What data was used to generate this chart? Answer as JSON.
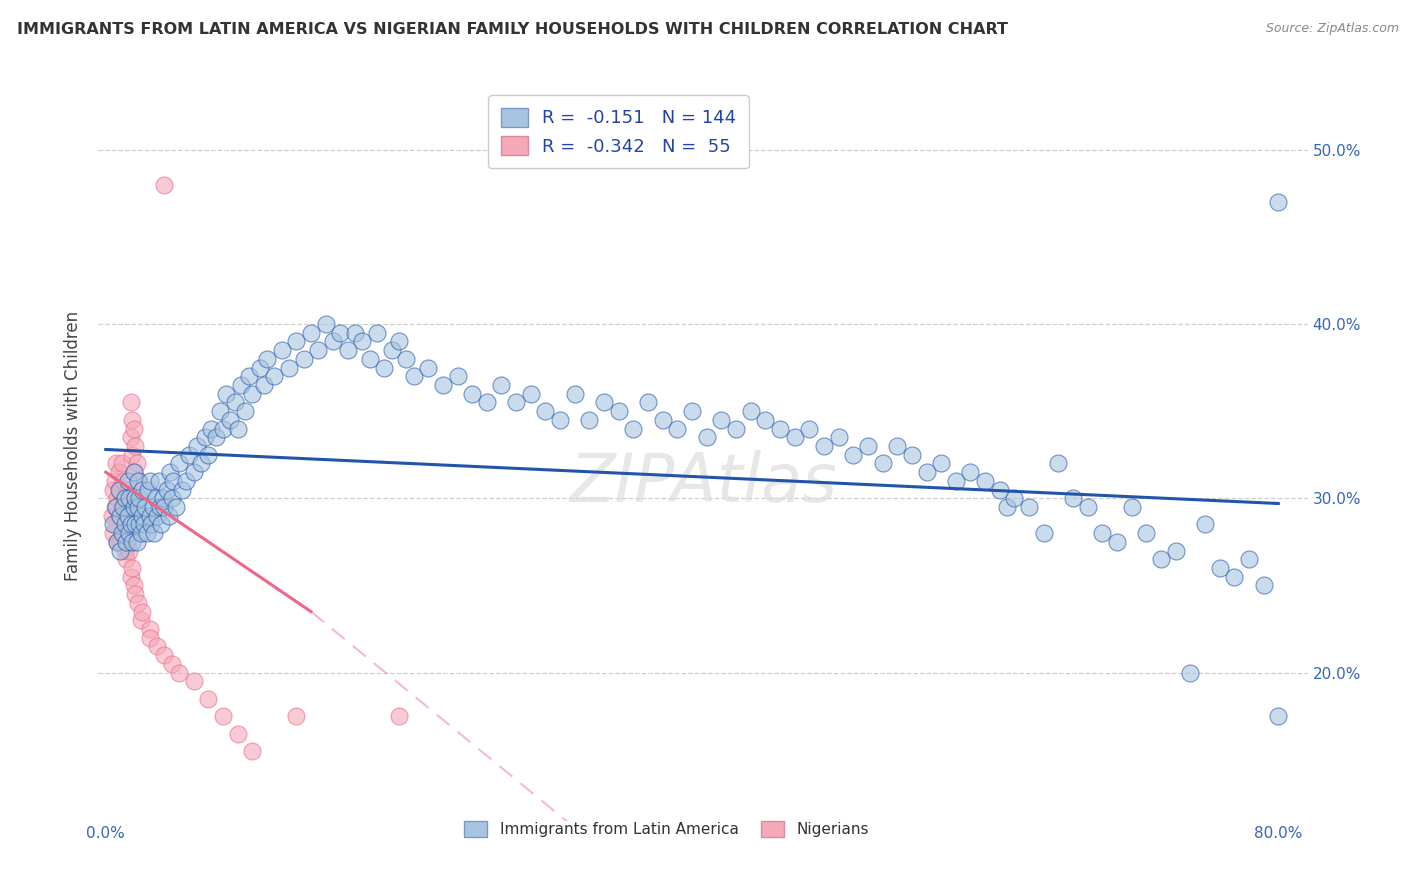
{
  "title": "IMMIGRANTS FROM LATIN AMERICA VS NIGERIAN FAMILY HOUSEHOLDS WITH CHILDREN CORRELATION CHART",
  "source": "Source: ZipAtlas.com",
  "ylabel": "Family Households with Children",
  "xlim": [
    -0.005,
    0.82
  ],
  "ylim": [
    0.115,
    0.545
  ],
  "blue_R": -0.151,
  "blue_N": 144,
  "pink_R": -0.342,
  "pink_N": 55,
  "blue_color": "#A8C4E0",
  "pink_color": "#F4A8B8",
  "blue_line_color": "#2255AA",
  "pink_line_color": "#EE6688",
  "background_color": "#ffffff",
  "grid_color": "#bbbbbb",
  "watermark": "ZIPAtlas",
  "ytick_positions": [
    0.2,
    0.3,
    0.4,
    0.5
  ],
  "ytick_labels": [
    "20.0%",
    "30.0%",
    "40.0%",
    "50.0%"
  ],
  "xtick_positions": [
    0.0,
    0.1,
    0.2,
    0.3,
    0.4,
    0.5,
    0.6,
    0.7,
    0.8
  ],
  "xtick_labels": [
    "0.0%",
    "",
    "",
    "",
    "",
    "",
    "",
    "",
    "80.0%"
  ],
  "blue_scatter": [
    [
      0.005,
      0.285
    ],
    [
      0.007,
      0.295
    ],
    [
      0.008,
      0.275
    ],
    [
      0.009,
      0.305
    ],
    [
      0.01,
      0.27
    ],
    [
      0.01,
      0.29
    ],
    [
      0.011,
      0.28
    ],
    [
      0.012,
      0.295
    ],
    [
      0.013,
      0.285
    ],
    [
      0.013,
      0.3
    ],
    [
      0.014,
      0.275
    ],
    [
      0.015,
      0.29
    ],
    [
      0.015,
      0.31
    ],
    [
      0.016,
      0.28
    ],
    [
      0.016,
      0.3
    ],
    [
      0.017,
      0.285
    ],
    [
      0.018,
      0.275
    ],
    [
      0.019,
      0.295
    ],
    [
      0.019,
      0.315
    ],
    [
      0.02,
      0.285
    ],
    [
      0.02,
      0.3
    ],
    [
      0.021,
      0.275
    ],
    [
      0.022,
      0.295
    ],
    [
      0.022,
      0.31
    ],
    [
      0.023,
      0.285
    ],
    [
      0.023,
      0.3
    ],
    [
      0.024,
      0.28
    ],
    [
      0.025,
      0.29
    ],
    [
      0.025,
      0.305
    ],
    [
      0.026,
      0.285
    ],
    [
      0.027,
      0.295
    ],
    [
      0.028,
      0.28
    ],
    [
      0.029,
      0.305
    ],
    [
      0.03,
      0.29
    ],
    [
      0.03,
      0.31
    ],
    [
      0.031,
      0.285
    ],
    [
      0.032,
      0.295
    ],
    [
      0.033,
      0.28
    ],
    [
      0.034,
      0.3
    ],
    [
      0.035,
      0.29
    ],
    [
      0.036,
      0.31
    ],
    [
      0.037,
      0.295
    ],
    [
      0.038,
      0.285
    ],
    [
      0.039,
      0.3
    ],
    [
      0.04,
      0.295
    ],
    [
      0.042,
      0.305
    ],
    [
      0.043,
      0.29
    ],
    [
      0.044,
      0.315
    ],
    [
      0.045,
      0.3
    ],
    [
      0.046,
      0.31
    ],
    [
      0.048,
      0.295
    ],
    [
      0.05,
      0.32
    ],
    [
      0.052,
      0.305
    ],
    [
      0.055,
      0.31
    ],
    [
      0.057,
      0.325
    ],
    [
      0.06,
      0.315
    ],
    [
      0.062,
      0.33
    ],
    [
      0.065,
      0.32
    ],
    [
      0.068,
      0.335
    ],
    [
      0.07,
      0.325
    ],
    [
      0.072,
      0.34
    ],
    [
      0.075,
      0.335
    ],
    [
      0.078,
      0.35
    ],
    [
      0.08,
      0.34
    ],
    [
      0.082,
      0.36
    ],
    [
      0.085,
      0.345
    ],
    [
      0.088,
      0.355
    ],
    [
      0.09,
      0.34
    ],
    [
      0.092,
      0.365
    ],
    [
      0.095,
      0.35
    ],
    [
      0.098,
      0.37
    ],
    [
      0.1,
      0.36
    ],
    [
      0.105,
      0.375
    ],
    [
      0.108,
      0.365
    ],
    [
      0.11,
      0.38
    ],
    [
      0.115,
      0.37
    ],
    [
      0.12,
      0.385
    ],
    [
      0.125,
      0.375
    ],
    [
      0.13,
      0.39
    ],
    [
      0.135,
      0.38
    ],
    [
      0.14,
      0.395
    ],
    [
      0.145,
      0.385
    ],
    [
      0.15,
      0.4
    ],
    [
      0.155,
      0.39
    ],
    [
      0.16,
      0.395
    ],
    [
      0.165,
      0.385
    ],
    [
      0.17,
      0.395
    ],
    [
      0.175,
      0.39
    ],
    [
      0.18,
      0.38
    ],
    [
      0.185,
      0.395
    ],
    [
      0.19,
      0.375
    ],
    [
      0.195,
      0.385
    ],
    [
      0.2,
      0.39
    ],
    [
      0.205,
      0.38
    ],
    [
      0.21,
      0.37
    ],
    [
      0.22,
      0.375
    ],
    [
      0.23,
      0.365
    ],
    [
      0.24,
      0.37
    ],
    [
      0.25,
      0.36
    ],
    [
      0.26,
      0.355
    ],
    [
      0.27,
      0.365
    ],
    [
      0.28,
      0.355
    ],
    [
      0.29,
      0.36
    ],
    [
      0.3,
      0.35
    ],
    [
      0.31,
      0.345
    ],
    [
      0.32,
      0.36
    ],
    [
      0.33,
      0.345
    ],
    [
      0.34,
      0.355
    ],
    [
      0.35,
      0.35
    ],
    [
      0.36,
      0.34
    ],
    [
      0.37,
      0.355
    ],
    [
      0.38,
      0.345
    ],
    [
      0.39,
      0.34
    ],
    [
      0.4,
      0.35
    ],
    [
      0.41,
      0.335
    ],
    [
      0.42,
      0.345
    ],
    [
      0.43,
      0.34
    ],
    [
      0.44,
      0.35
    ],
    [
      0.45,
      0.345
    ],
    [
      0.46,
      0.34
    ],
    [
      0.47,
      0.335
    ],
    [
      0.48,
      0.34
    ],
    [
      0.49,
      0.33
    ],
    [
      0.5,
      0.335
    ],
    [
      0.51,
      0.325
    ],
    [
      0.52,
      0.33
    ],
    [
      0.53,
      0.32
    ],
    [
      0.54,
      0.33
    ],
    [
      0.55,
      0.325
    ],
    [
      0.56,
      0.315
    ],
    [
      0.57,
      0.32
    ],
    [
      0.58,
      0.31
    ],
    [
      0.59,
      0.315
    ],
    [
      0.6,
      0.31
    ],
    [
      0.61,
      0.305
    ],
    [
      0.615,
      0.295
    ],
    [
      0.62,
      0.3
    ],
    [
      0.63,
      0.295
    ],
    [
      0.64,
      0.28
    ],
    [
      0.65,
      0.32
    ],
    [
      0.66,
      0.3
    ],
    [
      0.67,
      0.295
    ],
    [
      0.68,
      0.28
    ],
    [
      0.69,
      0.275
    ],
    [
      0.7,
      0.295
    ],
    [
      0.71,
      0.28
    ],
    [
      0.72,
      0.265
    ],
    [
      0.73,
      0.27
    ],
    [
      0.74,
      0.2
    ],
    [
      0.75,
      0.285
    ],
    [
      0.76,
      0.26
    ],
    [
      0.77,
      0.255
    ],
    [
      0.78,
      0.265
    ],
    [
      0.79,
      0.25
    ],
    [
      0.8,
      0.47
    ],
    [
      0.8,
      0.175
    ]
  ],
  "pink_scatter": [
    [
      0.004,
      0.29
    ],
    [
      0.005,
      0.305
    ],
    [
      0.005,
      0.28
    ],
    [
      0.006,
      0.31
    ],
    [
      0.006,
      0.295
    ],
    [
      0.007,
      0.285
    ],
    [
      0.007,
      0.32
    ],
    [
      0.008,
      0.3
    ],
    [
      0.008,
      0.275
    ],
    [
      0.009,
      0.315
    ],
    [
      0.009,
      0.29
    ],
    [
      0.01,
      0.305
    ],
    [
      0.01,
      0.275
    ],
    [
      0.011,
      0.32
    ],
    [
      0.011,
      0.295
    ],
    [
      0.012,
      0.31
    ],
    [
      0.012,
      0.28
    ],
    [
      0.013,
      0.3
    ],
    [
      0.013,
      0.27
    ],
    [
      0.014,
      0.295
    ],
    [
      0.014,
      0.265
    ],
    [
      0.015,
      0.305
    ],
    [
      0.015,
      0.275
    ],
    [
      0.016,
      0.295
    ],
    [
      0.016,
      0.27
    ],
    [
      0.017,
      0.355
    ],
    [
      0.017,
      0.335
    ],
    [
      0.017,
      0.255
    ],
    [
      0.018,
      0.345
    ],
    [
      0.018,
      0.325
    ],
    [
      0.018,
      0.26
    ],
    [
      0.019,
      0.34
    ],
    [
      0.019,
      0.315
    ],
    [
      0.019,
      0.25
    ],
    [
      0.02,
      0.33
    ],
    [
      0.02,
      0.245
    ],
    [
      0.021,
      0.32
    ],
    [
      0.022,
      0.24
    ],
    [
      0.023,
      0.31
    ],
    [
      0.024,
      0.23
    ],
    [
      0.025,
      0.235
    ],
    [
      0.03,
      0.225
    ],
    [
      0.03,
      0.22
    ],
    [
      0.035,
      0.215
    ],
    [
      0.04,
      0.48
    ],
    [
      0.04,
      0.21
    ],
    [
      0.045,
      0.205
    ],
    [
      0.05,
      0.2
    ],
    [
      0.06,
      0.195
    ],
    [
      0.07,
      0.185
    ],
    [
      0.08,
      0.175
    ],
    [
      0.09,
      0.165
    ],
    [
      0.1,
      0.155
    ],
    [
      0.13,
      0.175
    ],
    [
      0.2,
      0.175
    ]
  ]
}
